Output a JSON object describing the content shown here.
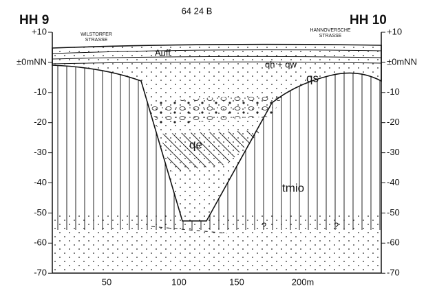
{
  "header": {
    "sheet": "64 24 B",
    "left_well": "HH 9",
    "right_well": "HH 10"
  },
  "streets": {
    "left": [
      "WILSTORFER",
      "STRASSE"
    ],
    "right": [
      "HANNOVERSCHE",
      "STRASSE"
    ]
  },
  "units": {
    "fill": "Auff",
    "holocene": "qh + qw",
    "saale": "qs",
    "elster": "qe",
    "miocene": "tmio",
    "unknown": [
      "?",
      "?"
    ]
  },
  "left_axis": [
    "+10",
    "±0mNN",
    "-10",
    "-20",
    "-30",
    "-40",
    "-50",
    "-60",
    "-70"
  ],
  "right_axis": [
    "+10",
    "±0mNN",
    "-10",
    "-20",
    "-30",
    "-40",
    "-50",
    "-60",
    "-70"
  ],
  "x_axis": [
    "50",
    "100",
    "150",
    "200m"
  ]
}
